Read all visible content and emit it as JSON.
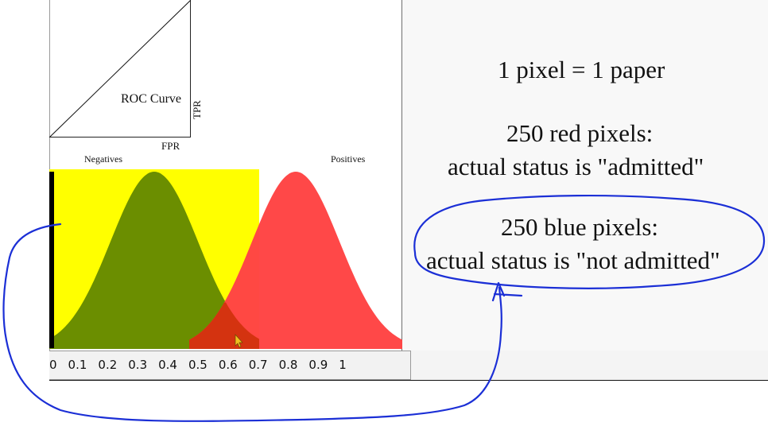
{
  "roc": {
    "title": "ROC Curve",
    "x_label": "FPR",
    "y_label": "TPR"
  },
  "distribution": {
    "negatives_label": "Negatives",
    "positives_label": "Positives",
    "colors": {
      "threshold_region": "#ffff00",
      "negatives": "#6b8e00",
      "positives": "#ff4444",
      "overlap": "#d43310"
    }
  },
  "axis": {
    "ticks": [
      "0",
      "0.1",
      "0.2",
      "0.3",
      "0.4",
      "0.5",
      "0.6",
      "0.7",
      "0.8",
      "0.9",
      "1"
    ]
  },
  "notes": {
    "line1": "1 pixel = 1 paper",
    "red_heading": "250 red pixels:",
    "red_status": "actual status is \"admitted\"",
    "blue_heading": "250 blue pixels:",
    "blue_status": "actual status is \"not admitted\""
  },
  "annotation_color": "#1b2fd6"
}
